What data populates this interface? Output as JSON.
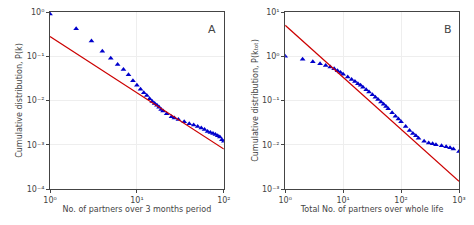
{
  "chart_data": [
    {
      "type": "scatter",
      "title": "A",
      "xlabel": "No. of partners over 3 months period",
      "ylabel": "Cumulative distribution, P(k)",
      "log": true,
      "grid": true,
      "xlim": [
        1,
        100
      ],
      "ylim": [
        0.0001,
        1
      ],
      "xticks": [
        {
          "value": 1,
          "label": "10⁰"
        },
        {
          "value": 10,
          "label": "10¹"
        },
        {
          "value": 100,
          "label": "10²"
        }
      ],
      "yticks": [
        {
          "value": 0.0001,
          "label": "10⁻⁴"
        },
        {
          "value": 0.001,
          "label": "10⁻³"
        },
        {
          "value": 0.01,
          "label": "10⁻²"
        },
        {
          "value": 0.1,
          "label": "10⁻¹"
        },
        {
          "value": 1,
          "label": "10⁰"
        }
      ],
      "series": [
        {
          "type": "scatter",
          "marker": "triangle-up",
          "color": "#0000CC",
          "x": [
            1,
            2,
            3,
            4,
            5,
            6,
            7,
            8,
            9,
            10,
            11,
            12,
            13,
            14,
            15,
            16,
            17,
            18,
            19,
            20,
            22,
            25,
            27,
            30,
            35,
            40,
            45,
            50,
            55,
            60,
            65,
            70,
            75,
            80,
            85,
            90,
            95,
            100
          ],
          "values": [
            0.9,
            0.42,
            0.22,
            0.13,
            0.09,
            0.065,
            0.05,
            0.038,
            0.028,
            0.022,
            0.018,
            0.015,
            0.013,
            0.011,
            0.0095,
            0.0085,
            0.0078,
            0.007,
            0.0063,
            0.0058,
            0.005,
            0.0043,
            0.004,
            0.0037,
            0.0033,
            0.003,
            0.0028,
            0.0026,
            0.0024,
            0.0022,
            0.002,
            0.0019,
            0.0018,
            0.0017,
            0.0016,
            0.0015,
            0.0013,
            0.0012
          ]
        },
        {
          "type": "line",
          "line_style": "solid",
          "color": "#CC0000",
          "x": [
            1,
            100
          ],
          "values": [
            0.28,
            0.0008
          ]
        }
      ]
    },
    {
      "type": "scatter",
      "title": "B",
      "xlabel": "Total No. of partners over whole life",
      "ylabel": "Cumulative distribution, P(kₜₒₜ)",
      "log": true,
      "grid": true,
      "xlim": [
        1,
        1000
      ],
      "ylim": [
        0.001,
        10
      ],
      "xticks": [
        {
          "value": 1,
          "label": "10⁰"
        },
        {
          "value": 10,
          "label": "10¹"
        },
        {
          "value": 100,
          "label": "10²"
        },
        {
          "value": 1000,
          "label": "10³"
        }
      ],
      "yticks": [
        {
          "value": 0.001,
          "label": "10⁻³"
        },
        {
          "value": 0.01,
          "label": "10⁻²"
        },
        {
          "value": 0.1,
          "label": "10⁻¹"
        },
        {
          "value": 1,
          "label": "10⁰"
        },
        {
          "value": 10,
          "label": "10¹"
        }
      ],
      "series": [
        {
          "type": "scatter",
          "marker": "triangle-up",
          "color": "#0000CC",
          "x": [
            1,
            2,
            3,
            4,
            5,
            6,
            7,
            8,
            9,
            10,
            12,
            14,
            16,
            18,
            20,
            22,
            25,
            28,
            32,
            36,
            40,
            45,
            50,
            55,
            60,
            70,
            80,
            90,
            100,
            120,
            140,
            160,
            180,
            200,
            250,
            300,
            350,
            400,
            500,
            600,
            700,
            800,
            1000
          ],
          "values": [
            1.0,
            0.85,
            0.75,
            0.68,
            0.62,
            0.57,
            0.52,
            0.47,
            0.43,
            0.39,
            0.34,
            0.3,
            0.27,
            0.24,
            0.22,
            0.2,
            0.175,
            0.155,
            0.135,
            0.118,
            0.105,
            0.093,
            0.082,
            0.073,
            0.065,
            0.053,
            0.044,
            0.038,
            0.033,
            0.026,
            0.021,
            0.018,
            0.016,
            0.014,
            0.012,
            0.011,
            0.0105,
            0.01,
            0.0095,
            0.009,
            0.0085,
            0.008,
            0.007
          ]
        },
        {
          "type": "line",
          "line_style": "solid",
          "color": "#CC0000",
          "x": [
            1,
            1000
          ],
          "values": [
            5.0,
            0.0015
          ]
        }
      ]
    }
  ]
}
